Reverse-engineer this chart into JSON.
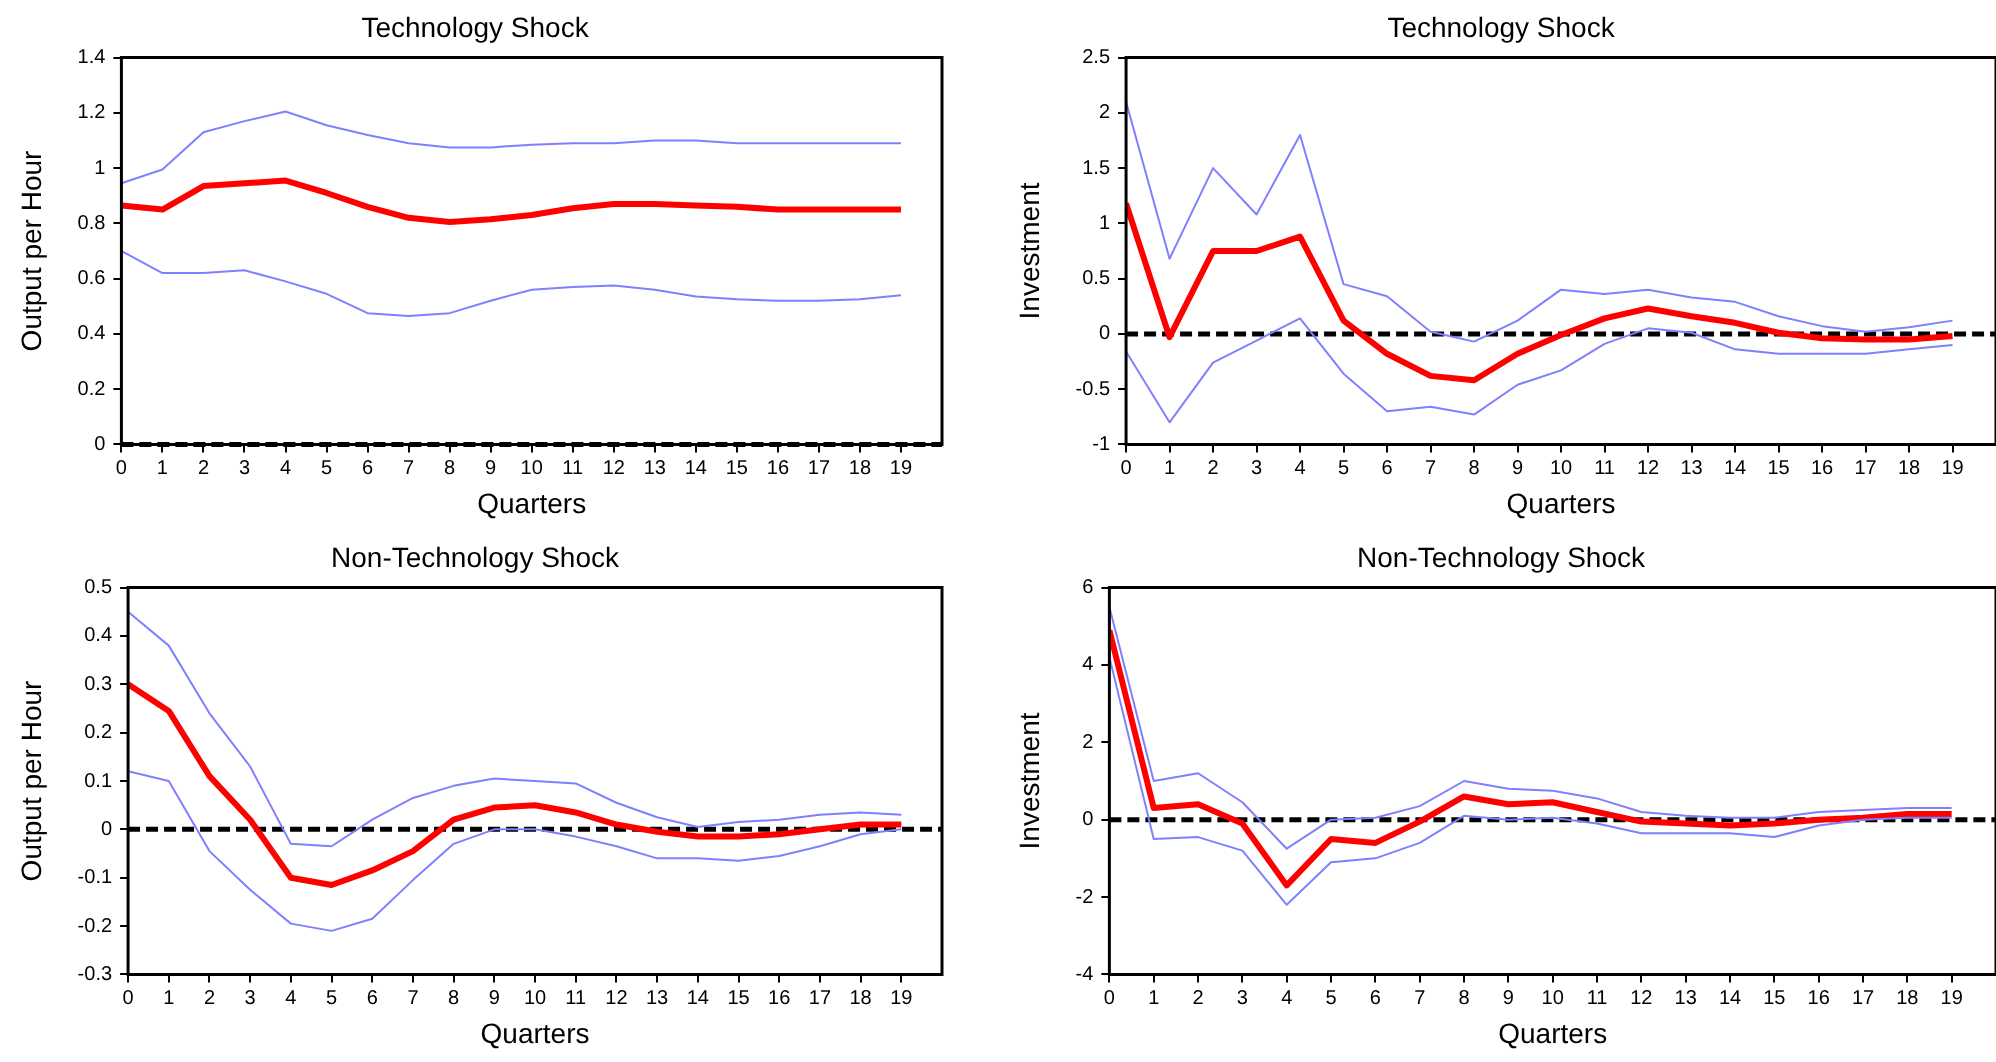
{
  "chart_data": [
    {
      "type": "line",
      "title": "Technology Shock",
      "xlabel": "Quarters",
      "ylabel": "Output per Hour",
      "x": [
        0,
        1,
        2,
        3,
        4,
        5,
        6,
        7,
        8,
        9,
        10,
        11,
        12,
        13,
        14,
        15,
        16,
        17,
        18,
        19
      ],
      "xlim": [
        0,
        20
      ],
      "xticks": [
        0,
        1,
        2,
        3,
        4,
        5,
        6,
        7,
        8,
        9,
        10,
        11,
        12,
        13,
        14,
        15,
        16,
        17,
        18,
        19
      ],
      "ylim": [
        0,
        1.4
      ],
      "yticks": [
        0,
        0.2,
        0.4,
        0.6,
        0.8,
        1,
        1.2,
        1.4
      ],
      "grid": false,
      "legend": false,
      "marker": "none",
      "ref_lines": [
        {
          "axis": "y",
          "value": 0,
          "color": "#000000",
          "line_style": "dashed"
        }
      ],
      "series": [
        {
          "color": "#8080ff",
          "values": [
            0.945,
            0.995,
            1.13,
            1.17,
            1.205,
            1.155,
            1.12,
            1.09,
            1.075,
            1.075,
            1.085,
            1.09,
            1.09,
            1.1,
            1.1,
            1.09,
            1.09,
            1.09,
            1.09,
            1.09
          ]
        },
        {
          "color": "#8080ff",
          "values": [
            0.7,
            0.62,
            0.62,
            0.63,
            0.59,
            0.545,
            0.475,
            0.465,
            0.475,
            0.52,
            0.56,
            0.57,
            0.575,
            0.56,
            0.535,
            0.525,
            0.52,
            0.52,
            0.525,
            0.54
          ]
        },
        {
          "color": "#ff0000",
          "values": [
            0.865,
            0.85,
            0.935,
            0.945,
            0.955,
            0.91,
            0.86,
            0.82,
            0.805,
            0.815,
            0.83,
            0.855,
            0.87,
            0.87,
            0.865,
            0.86,
            0.85,
            0.85,
            0.85,
            0.85
          ]
        }
      ]
    },
    {
      "type": "line",
      "title": "Technology Shock",
      "xlabel": "Quarters",
      "ylabel": "Investment",
      "x": [
        0,
        1,
        2,
        3,
        4,
        5,
        6,
        7,
        8,
        9,
        10,
        11,
        12,
        13,
        14,
        15,
        16,
        17,
        18,
        19
      ],
      "xlim": [
        0,
        20
      ],
      "xticks": [
        0,
        1,
        2,
        3,
        4,
        5,
        6,
        7,
        8,
        9,
        10,
        11,
        12,
        13,
        14,
        15,
        16,
        17,
        18,
        19
      ],
      "ylim": [
        -1,
        2.5
      ],
      "yticks": [
        -1,
        -0.5,
        0,
        0.5,
        1,
        1.5,
        2,
        2.5
      ],
      "grid": false,
      "legend": false,
      "marker": "none",
      "ref_lines": [
        {
          "axis": "y",
          "value": 0,
          "color": "#000000",
          "line_style": "dashed"
        }
      ],
      "series": [
        {
          "color": "#8080ff",
          "values": [
            2.1,
            0.68,
            1.5,
            1.08,
            1.8,
            0.45,
            0.34,
            0.02,
            -0.07,
            0.12,
            0.4,
            0.36,
            0.4,
            0.33,
            0.29,
            0.16,
            0.07,
            0.02,
            0.06,
            0.12
          ]
        },
        {
          "color": "#8080ff",
          "values": [
            -0.16,
            -0.8,
            -0.26,
            -0.06,
            0.14,
            -0.36,
            -0.7,
            -0.66,
            -0.73,
            -0.46,
            -0.33,
            -0.09,
            0.05,
            0.01,
            -0.14,
            -0.18,
            -0.18,
            -0.18,
            -0.14,
            -0.1
          ]
        },
        {
          "color": "#ff0000",
          "values": [
            1.18,
            -0.03,
            0.75,
            0.75,
            0.88,
            0.12,
            -0.18,
            -0.38,
            -0.42,
            -0.18,
            -0.01,
            0.14,
            0.23,
            0.16,
            0.1,
            0.01,
            -0.04,
            -0.05,
            -0.05,
            -0.02
          ]
        }
      ]
    },
    {
      "type": "line",
      "title": "Non-Technology Shock",
      "xlabel": "Quarters",
      "ylabel": "Output per Hour",
      "x": [
        0,
        1,
        2,
        3,
        4,
        5,
        6,
        7,
        8,
        9,
        10,
        11,
        12,
        13,
        14,
        15,
        16,
        17,
        18,
        19
      ],
      "xlim": [
        0,
        20
      ],
      "xticks": [
        0,
        1,
        2,
        3,
        4,
        5,
        6,
        7,
        8,
        9,
        10,
        11,
        12,
        13,
        14,
        15,
        16,
        17,
        18,
        19
      ],
      "ylim": [
        -0.3,
        0.5
      ],
      "yticks": [
        -0.3,
        -0.2,
        -0.1,
        0,
        0.1,
        0.2,
        0.3,
        0.4,
        0.5
      ],
      "grid": false,
      "legend": false,
      "marker": "none",
      "ref_lines": [
        {
          "axis": "y",
          "value": 0,
          "color": "#000000",
          "line_style": "dashed"
        }
      ],
      "series": [
        {
          "color": "#8080ff",
          "values": [
            0.45,
            0.38,
            0.24,
            0.13,
            -0.03,
            -0.035,
            0.02,
            0.065,
            0.09,
            0.105,
            0.1,
            0.095,
            0.055,
            0.025,
            0.005,
            0.015,
            0.02,
            0.03,
            0.035,
            0.03
          ]
        },
        {
          "color": "#8080ff",
          "values": [
            0.12,
            0.1,
            -0.045,
            -0.125,
            -0.195,
            -0.21,
            -0.185,
            -0.105,
            -0.03,
            0,
            0,
            -0.015,
            -0.035,
            -0.06,
            -0.06,
            -0.065,
            -0.055,
            -0.035,
            -0.01,
            0
          ]
        },
        {
          "color": "#ff0000",
          "values": [
            0.3,
            0.245,
            0.11,
            0.02,
            -0.1,
            -0.115,
            -0.085,
            -0.045,
            0.02,
            0.045,
            0.05,
            0.035,
            0.01,
            -0.005,
            -0.015,
            -0.015,
            -0.01,
            0,
            0.01,
            0.01
          ]
        }
      ]
    },
    {
      "type": "line",
      "title": "Non-Technology Shock",
      "xlabel": "Quarters",
      "ylabel": "Investment",
      "x": [
        0,
        1,
        2,
        3,
        4,
        5,
        6,
        7,
        8,
        9,
        10,
        11,
        12,
        13,
        14,
        15,
        16,
        17,
        18,
        19
      ],
      "xlim": [
        0,
        20
      ],
      "xticks": [
        0,
        1,
        2,
        3,
        4,
        5,
        6,
        7,
        8,
        9,
        10,
        11,
        12,
        13,
        14,
        15,
        16,
        17,
        18,
        19
      ],
      "ylim": [
        -4,
        6
      ],
      "yticks": [
        -4,
        -2,
        0,
        2,
        4,
        6
      ],
      "grid": false,
      "legend": false,
      "marker": "none",
      "ref_lines": [
        {
          "axis": "y",
          "value": 0,
          "color": "#000000",
          "line_style": "dashed"
        }
      ],
      "series": [
        {
          "color": "#8080ff",
          "values": [
            5.5,
            1,
            1.2,
            0.45,
            -0.75,
            0,
            0.05,
            0.35,
            1,
            0.8,
            0.75,
            0.55,
            0.2,
            0.1,
            0.05,
            0.05,
            0.2,
            0.25,
            0.3,
            0.3
          ]
        },
        {
          "color": "#8080ff",
          "values": [
            4.2,
            -0.5,
            -0.45,
            -0.8,
            -2.2,
            -1.1,
            -1,
            -0.6,
            0.1,
            0,
            0.05,
            -0.1,
            -0.35,
            -0.35,
            -0.35,
            -0.45,
            -0.15,
            0,
            0.05,
            0.05
          ]
        },
        {
          "color": "#ff0000",
          "values": [
            4.9,
            0.3,
            0.4,
            -0.1,
            -1.7,
            -0.5,
            -0.6,
            -0.05,
            0.6,
            0.4,
            0.45,
            0.2,
            -0.05,
            -0.1,
            -0.15,
            -0.1,
            0,
            0.05,
            0.15,
            0.15
          ]
        }
      ]
    }
  ]
}
